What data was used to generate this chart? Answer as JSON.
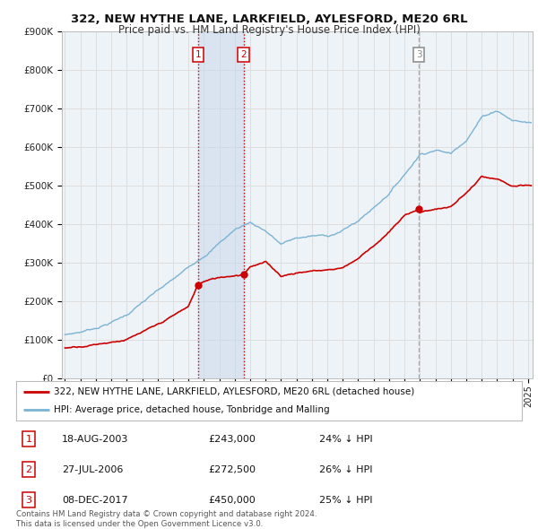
{
  "title": "322, NEW HYTHE LANE, LARKFIELD, AYLESFORD, ME20 6RL",
  "subtitle": "Price paid vs. HM Land Registry's House Price Index (HPI)",
  "legend_line1": "322, NEW HYTHE LANE, LARKFIELD, AYLESFORD, ME20 6RL (detached house)",
  "legend_line2": "HPI: Average price, detached house, Tonbridge and Malling",
  "footer1": "Contains HM Land Registry data © Crown copyright and database right 2024.",
  "footer2": "This data is licensed under the Open Government Licence v3.0.",
  "transactions": [
    {
      "num": 1,
      "date": "18-AUG-2003",
      "price": "£243,000",
      "pct": "24% ↓ HPI",
      "year_x": 2003.62,
      "price_val": 243000,
      "vline_color": "#cc0000",
      "vline_style": ":"
    },
    {
      "num": 2,
      "date": "27-JUL-2006",
      "price": "£272,500",
      "pct": "26% ↓ HPI",
      "year_x": 2006.57,
      "price_val": 272500,
      "vline_color": "#cc0000",
      "vline_style": ":"
    },
    {
      "num": 3,
      "date": "08-DEC-2017",
      "price": "£450,000",
      "pct": "25% ↓ HPI",
      "year_x": 2017.93,
      "price_val": 450000,
      "vline_color": "#aaaaaa",
      "vline_style": "--"
    }
  ],
  "shade_between": [
    2003.62,
    2006.57
  ],
  "hpi_color": "#7ab3d4",
  "price_color": "#cc0000",
  "grid_color": "#dddddd",
  "background_color": "#ffffff",
  "plot_bg_color": "#eef3f8",
  "ylim": [
    0,
    900000
  ],
  "xlim_start": 1994.8,
  "xlim_end": 2025.3,
  "title_fontsize": 9.5,
  "subtitle_fontsize": 8.5
}
